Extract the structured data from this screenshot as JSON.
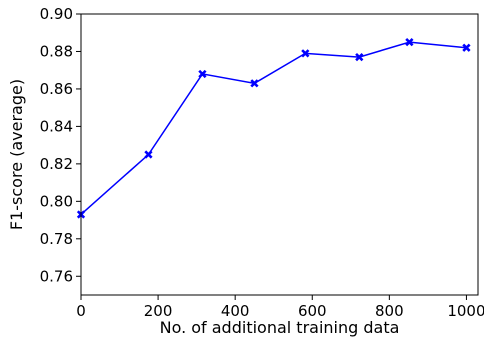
{
  "chart_data": {
    "type": "line",
    "title": "",
    "xlabel": "No. of additional training data",
    "ylabel": "F1-score (average)",
    "xlim": [
      0,
      1030
    ],
    "ylim": [
      0.75,
      0.9
    ],
    "x_ticks": [
      0,
      200,
      400,
      600,
      800,
      1000
    ],
    "x_tick_labels": [
      "0",
      "200",
      "400",
      "600",
      "800",
      "1000"
    ],
    "y_ticks": [
      0.76,
      0.78,
      0.8,
      0.82,
      0.84,
      0.86,
      0.88,
      0.9
    ],
    "y_tick_labels": [
      "0.76",
      "0.78",
      "0.80",
      "0.82",
      "0.84",
      "0.86",
      "0.88",
      "0.90"
    ],
    "grid": false,
    "legend": "none",
    "series": [
      {
        "color": "#0000ff",
        "marker": "x-filled",
        "x": [
          0,
          175,
          315,
          450,
          582,
          722,
          852,
          1000
        ],
        "y": [
          0.793,
          0.825,
          0.868,
          0.863,
          0.879,
          0.877,
          0.885,
          0.882
        ]
      }
    ]
  }
}
